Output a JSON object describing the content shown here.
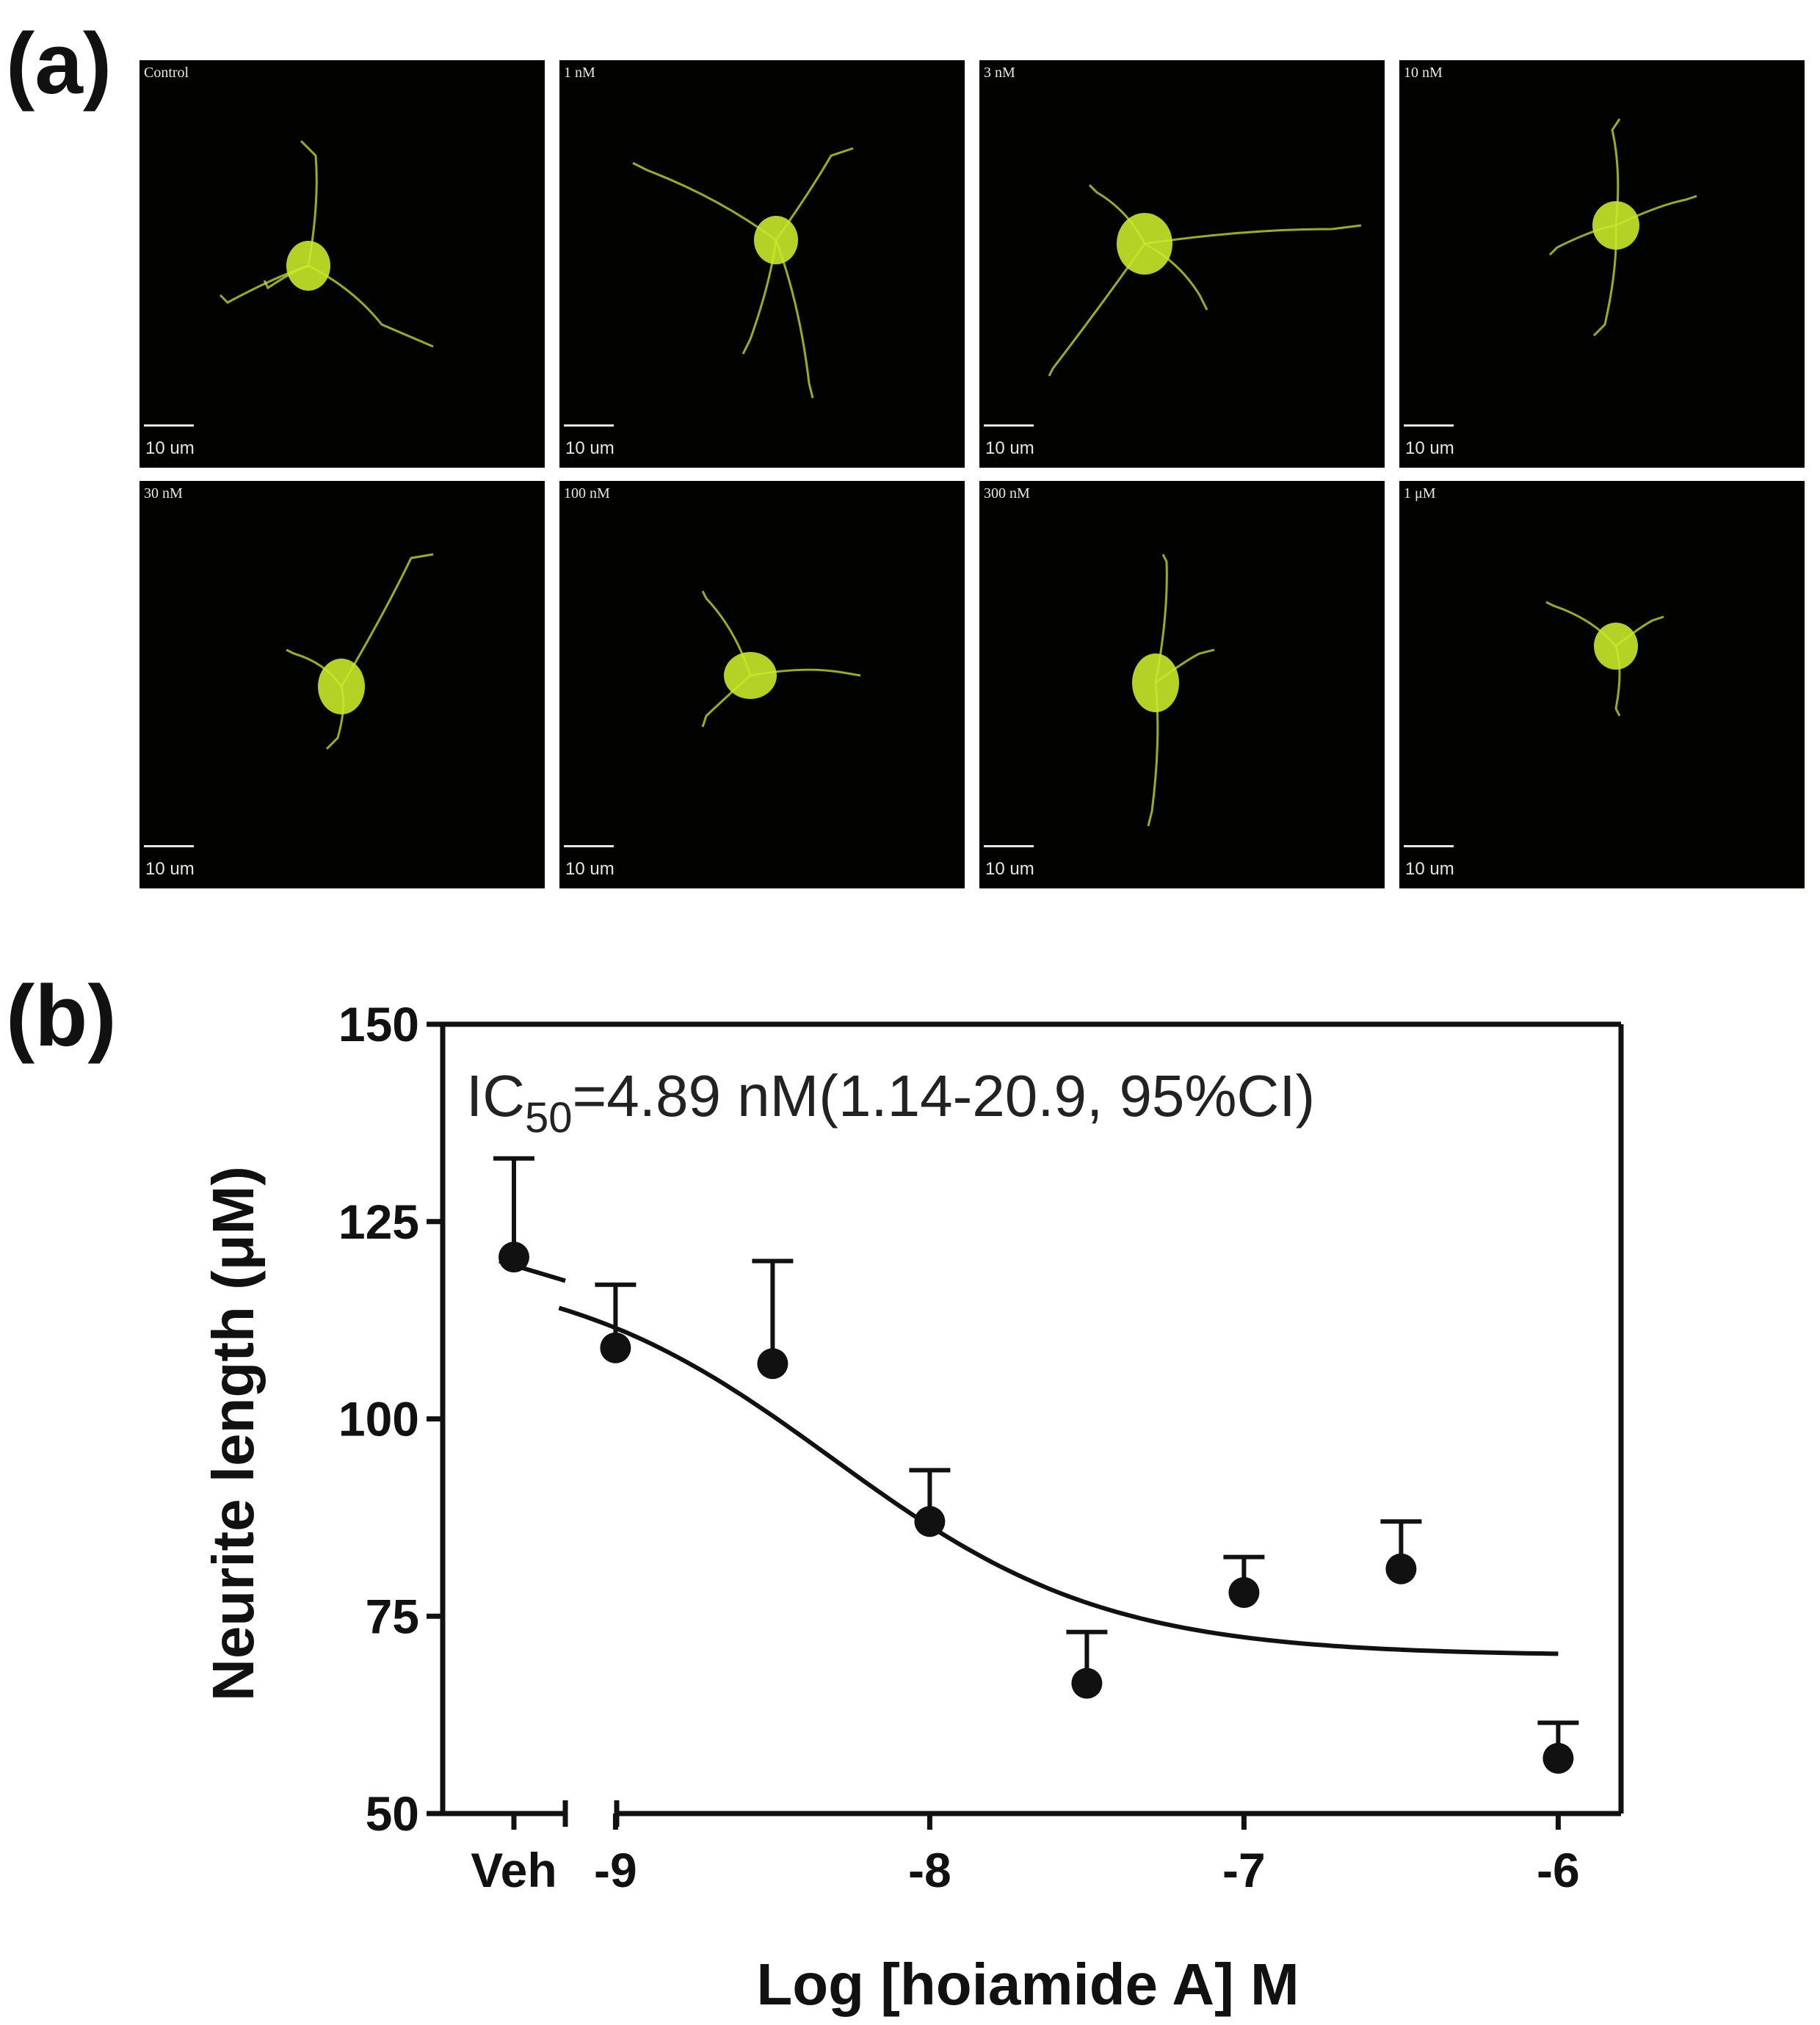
{
  "panel_a": {
    "label": "(a)",
    "scale_text": "10 um",
    "panels": [
      {
        "condition": "Control"
      },
      {
        "condition": "1 nM"
      },
      {
        "condition": "3 nM"
      },
      {
        "condition": "10 nM"
      },
      {
        "condition": "30 nM"
      },
      {
        "condition": "100 nM"
      },
      {
        "condition": "300 nM"
      },
      {
        "condition": "1 μM"
      }
    ],
    "colors": {
      "background": "#020301",
      "fluorescence": "#c8e82a"
    }
  },
  "panel_b": {
    "label": "(b)"
  },
  "chart_data": {
    "type": "scatter",
    "xlabel": "Log [hoiamide A] M",
    "ylabel": "Neurite length (μM)",
    "ylim": [
      50,
      150
    ],
    "yticks": [
      50,
      75,
      100,
      125,
      150
    ],
    "xticks": [
      "Veh",
      "-9",
      "-8",
      "-7",
      "-6"
    ],
    "xlim": [
      -9.55,
      -5.8
    ],
    "broken_x_axis": true,
    "annotation": {
      "prefix": "IC",
      "subscript": "50",
      "suffix": "=4.89 nM(1.14-20.9, 95%CI)"
    },
    "points": [
      {
        "x": "Veh",
        "y": 120.5,
        "err": 12.5
      },
      {
        "x": -9.0,
        "y": 109,
        "err": 8
      },
      {
        "x": -8.5,
        "y": 107,
        "err": 13
      },
      {
        "x": -8.0,
        "y": 87,
        "err": 6.5
      },
      {
        "x": -7.5,
        "y": 66.5,
        "err": 6.5
      },
      {
        "x": -7.0,
        "y": 78,
        "err": 4.5
      },
      {
        "x": -6.5,
        "y": 81,
        "err": 6
      },
      {
        "x": -6.0,
        "y": 57,
        "err": 4.5
      }
    ],
    "fit": {
      "model": "sigmoidal dose-response",
      "top": 120,
      "bottom": 70,
      "log_ic50": -8.31,
      "x_range": [
        -9.18,
        -6.0
      ]
    },
    "vehicle_fit_y": [
      120,
      117.5
    ],
    "colors": {
      "ink": "#111111"
    }
  }
}
